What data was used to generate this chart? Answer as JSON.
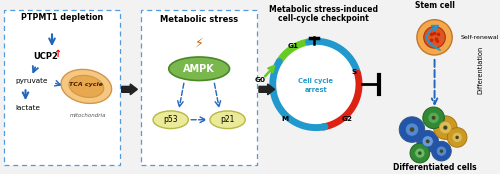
{
  "bg_color": "#f2f2f2",
  "box_dash_color": "#5599dd",
  "title1": "PTPMT1 depletion",
  "title2": "Metabolic stress",
  "title3_line1": "Metabolic stress-induced",
  "title3_line2": "cell-cycle checkpoint",
  "ucp2_text": "UCP2",
  "pyruvate_text": "pyruvate",
  "lactate_text": "lactate",
  "tca_text": "TCA cycle",
  "mito_text": "mitochondria",
  "ampk_text": "AMPK",
  "p53_text": "p53",
  "p21_text": "p21",
  "cell_cycle_arrest": "Cell cycle arrest",
  "g0": "G0",
  "g1": "G1",
  "s": "S",
  "g2": "G2",
  "m": "M",
  "stem_cell": "Stem cell",
  "self_renewal": "Self-renewal",
  "differentiation": "Differentiation",
  "diff_cells": "Differentiated cells",
  "mito_color": "#f5c882",
  "mito_edge": "#d4954a",
  "mito_inner_color": "#e8a850",
  "ampk_color": "#7ab84e",
  "ampk_edge": "#4a8828",
  "p53_color": "#eaea98",
  "p53_edge": "#b8b848",
  "p21_color": "#eaea98",
  "p21_edge": "#b8b848",
  "blue_arrow": "#2266bb",
  "green_arc": "#66cc22",
  "red_arc": "#dd2211",
  "cyan_arc": "#2299cc",
  "block_arrow_color": "#222222",
  "stem_outer": "#f5a84a",
  "stem_inner": "#dd5522",
  "self_renewal_color": "#2299cc",
  "diff_blue": "#2255aa",
  "diff_yellow": "#ccaa22",
  "diff_green": "#44aa44"
}
